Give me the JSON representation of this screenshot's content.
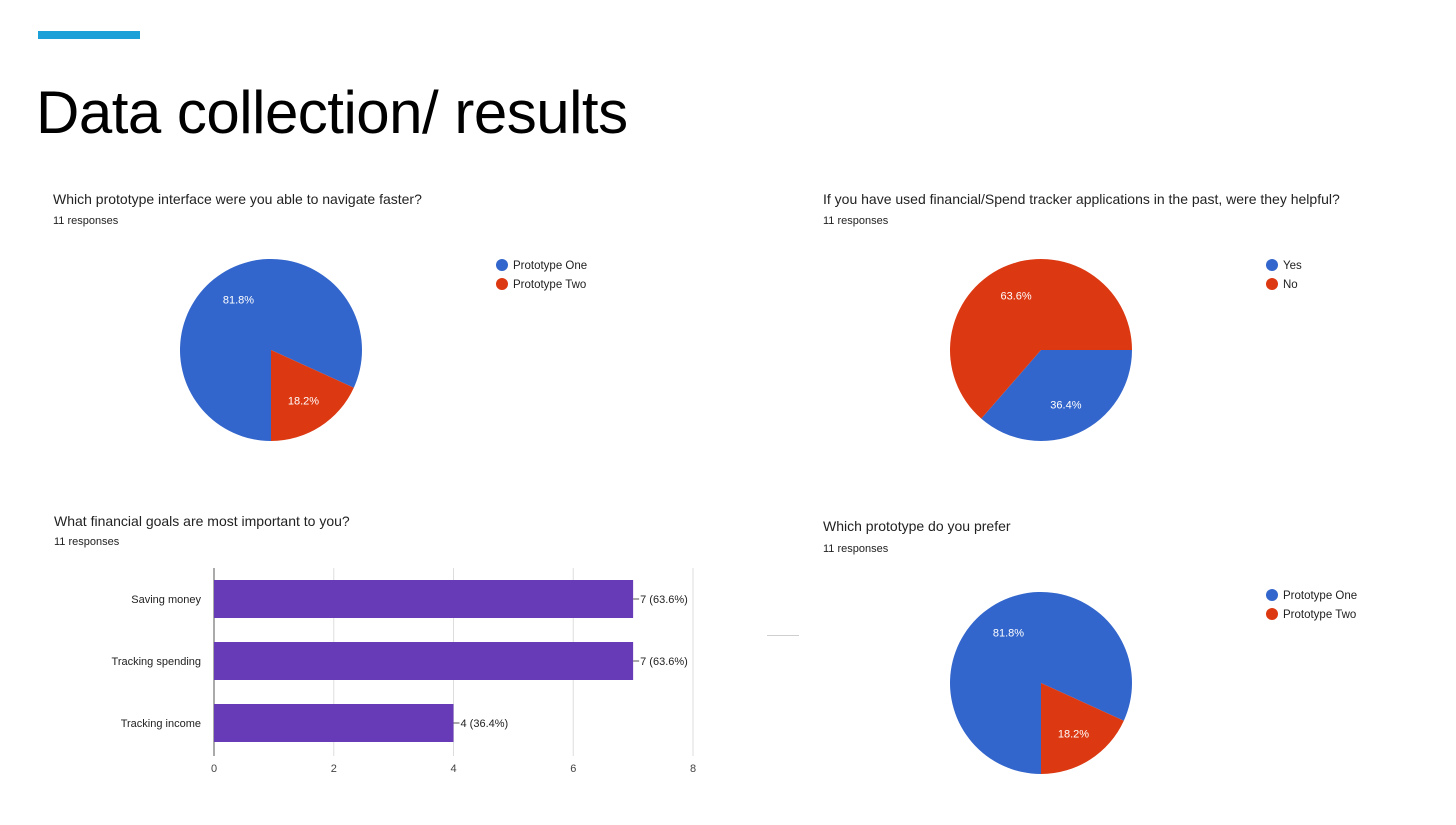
{
  "slide": {
    "title": "Data collection/ results",
    "accent_color": "#1ba0d8"
  },
  "colors": {
    "blue": "#3366cc",
    "red": "#dc3912",
    "purple": "#673ab7"
  },
  "chart_data": [
    {
      "type": "pie",
      "title": "Which prototype interface were you able to navigate faster?",
      "subtitle": "11 responses",
      "legend_position": "right",
      "slices": [
        {
          "label": "Prototype One",
          "value": 81.8,
          "display": "81.8%",
          "color": "#3366cc"
        },
        {
          "label": "Prototype Two",
          "value": 18.2,
          "display": "18.2%",
          "color": "#dc3912"
        }
      ]
    },
    {
      "type": "pie",
      "title": "If you have used financial/Spend tracker applications in the past, were they helpful?",
      "subtitle": "11 responses",
      "legend_position": "right",
      "slices": [
        {
          "label": "Yes",
          "value": 36.4,
          "display": "36.4%",
          "color": "#3366cc"
        },
        {
          "label": "No",
          "value": 63.6,
          "display": "63.6%",
          "color": "#dc3912"
        }
      ]
    },
    {
      "type": "bar",
      "orientation": "horizontal",
      "title": "What financial goals are most important to you?",
      "subtitle": "11 responses",
      "categories": [
        "Saving money",
        "Tracking spending",
        "Tracking income"
      ],
      "values": [
        7,
        7,
        4
      ],
      "value_labels": [
        "7 (63.6%)",
        "7 (63.6%)",
        "4 (36.4%)"
      ],
      "xlim": [
        0,
        8
      ],
      "xticks": [
        "0",
        "2",
        "4",
        "6",
        "8"
      ],
      "grid": true,
      "color": "#673ab7"
    },
    {
      "type": "pie",
      "title": "Which prototype do you prefer",
      "subtitle": "11 responses",
      "legend_position": "right",
      "slices": [
        {
          "label": "Prototype One",
          "value": 81.8,
          "display": "81.8%",
          "color": "#3366cc"
        },
        {
          "label": "Prototype Two",
          "value": 18.2,
          "display": "18.2%",
          "color": "#dc3912"
        }
      ]
    }
  ]
}
